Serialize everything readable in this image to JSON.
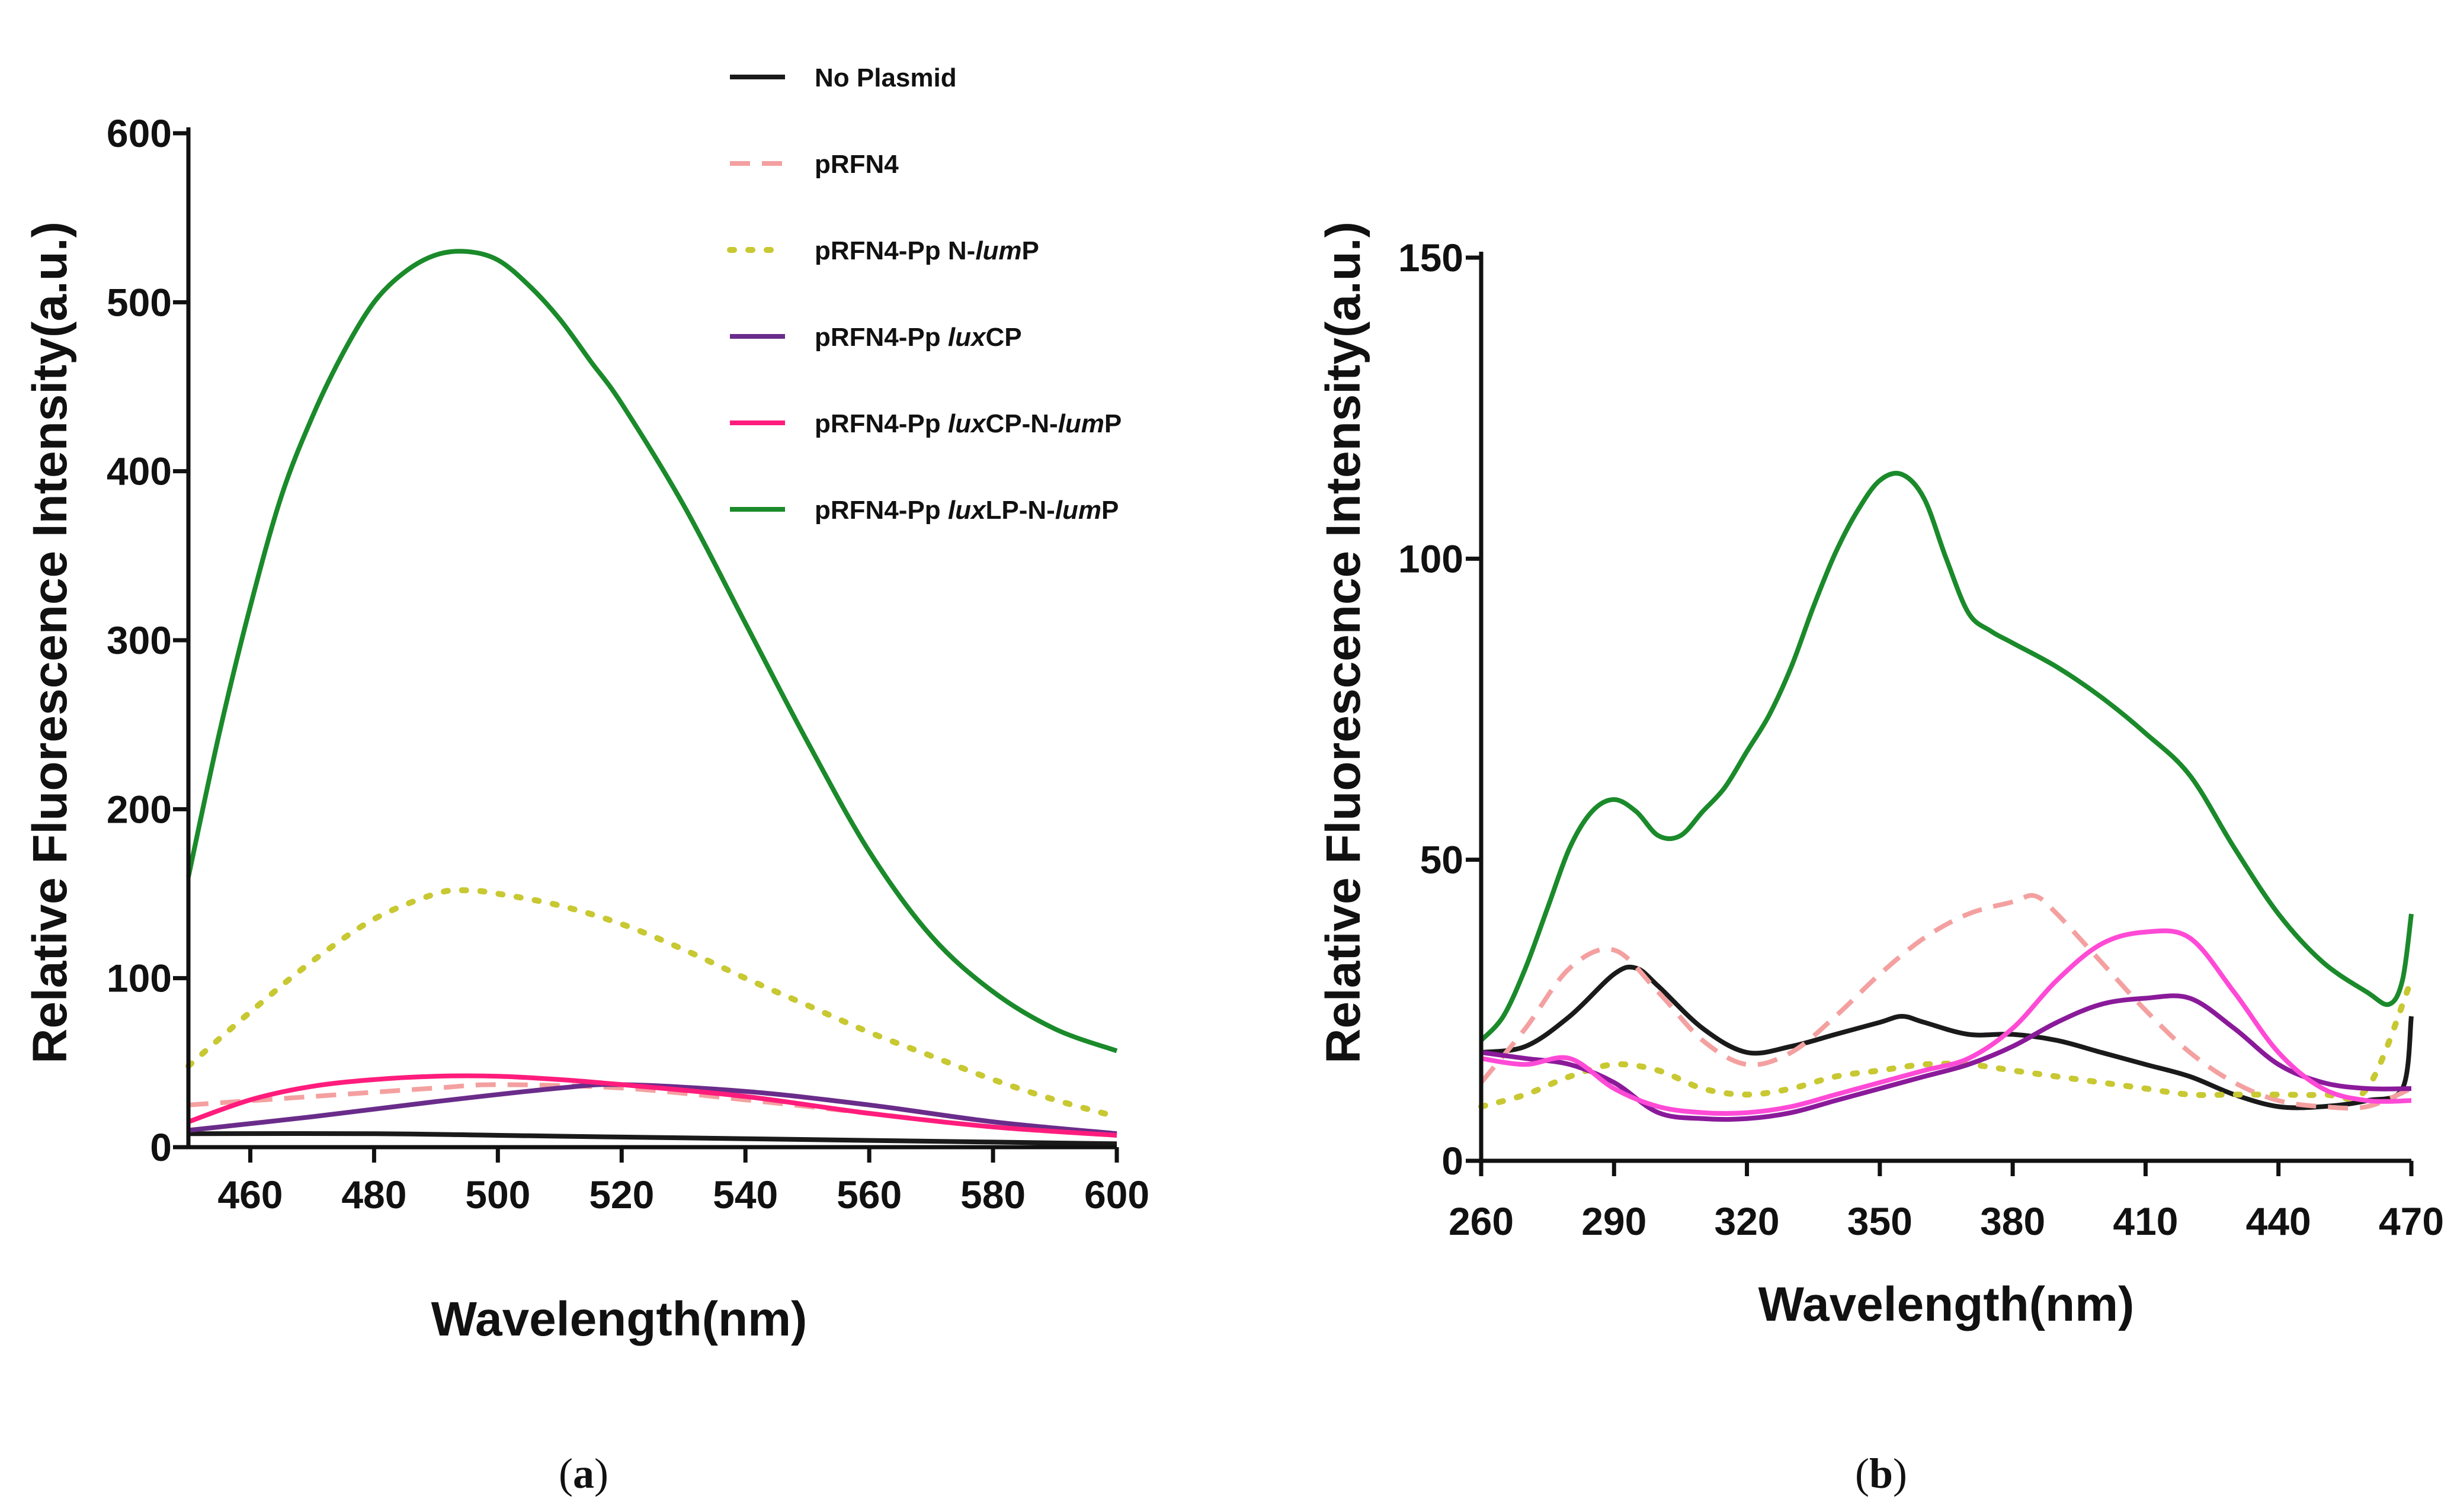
{
  "chart_data": [
    {
      "id": "a",
      "type": "line",
      "panel_label": "a",
      "xlabel": "Wavelength(nm)",
      "ylabel": "Relative Fluorescence Intensity(a.u.)",
      "xlim": [
        450,
        600
      ],
      "ylim": [
        0,
        600
      ],
      "xticks": [
        460,
        480,
        500,
        520,
        540,
        560,
        580,
        600
      ],
      "yticks": [
        0,
        100,
        200,
        300,
        400,
        500,
        600
      ],
      "legend_position": "top-right",
      "series": [
        {
          "name": "No Plasmid",
          "legend": [
            {
              "t": "No Plasmid",
              "i": false
            }
          ],
          "color": "#1a1a1a",
          "style": "solid",
          "x": [
            450,
            480,
            500,
            520,
            540,
            560,
            580,
            600
          ],
          "y": [
            8,
            8,
            7,
            6,
            5,
            4,
            3,
            2
          ]
        },
        {
          "name": "pRFN4",
          "legend": [
            {
              "t": "pRFN4",
              "i": false
            }
          ],
          "color": "#f4a0a0",
          "style": "dashed",
          "x": [
            450,
            470,
            490,
            500,
            520,
            540,
            560,
            580,
            600
          ],
          "y": [
            25,
            30,
            35,
            37,
            35,
            28,
            20,
            12,
            7
          ]
        },
        {
          "name": "pRFN4-Pp N-lumP",
          "legend": [
            {
              "t": "pRFN4-Pp N-",
              "i": false
            },
            {
              "t": "lum",
              "i": true
            },
            {
              "t": "P",
              "i": false
            }
          ],
          "color": "#c8c832",
          "style": "dotted",
          "x": [
            450,
            460,
            470,
            480,
            490,
            495,
            500,
            510,
            520,
            530,
            540,
            550,
            560,
            570,
            580,
            590,
            600
          ],
          "y": [
            48,
            80,
            110,
            135,
            150,
            152,
            150,
            143,
            132,
            117,
            100,
            84,
            68,
            54,
            40,
            28,
            18
          ]
        },
        {
          "name": "pRFN4-Pp luxCP",
          "legend": [
            {
              "t": "pRFN4-Pp ",
              "i": false
            },
            {
              "t": "lux",
              "i": true
            },
            {
              "t": "CP",
              "i": false
            }
          ],
          "color": "#6a2c8a",
          "style": "solid",
          "x": [
            450,
            470,
            490,
            510,
            520,
            540,
            560,
            580,
            600
          ],
          "y": [
            10,
            18,
            27,
            35,
            37,
            33,
            25,
            15,
            8
          ]
        },
        {
          "name": "pRFN4-Pp luxCP-N-lumP",
          "legend": [
            {
              "t": "pRFN4-Pp ",
              "i": false
            },
            {
              "t": "lux",
              "i": true
            },
            {
              "t": "CP-N-",
              "i": false
            },
            {
              "t": "lum",
              "i": true
            },
            {
              "t": "P",
              "i": false
            }
          ],
          "color": "#ff1c7c",
          "style": "solid",
          "x": [
            450,
            460,
            470,
            480,
            490,
            500,
            510,
            520,
            540,
            560,
            580,
            600
          ],
          "y": [
            15,
            28,
            36,
            40,
            42,
            42,
            40,
            37,
            30,
            20,
            12,
            7
          ]
        },
        {
          "name": "pRFN4-Pp luxLP-N-lumP",
          "legend": [
            {
              "t": "pRFN4-Pp ",
              "i": false
            },
            {
              "t": "lux",
              "i": true
            },
            {
              "t": "LP-N-",
              "i": false
            },
            {
              "t": "lum",
              "i": true
            },
            {
              "t": "P",
              "i": false
            }
          ],
          "color": "#1a8a2a",
          "style": "solid",
          "x": [
            450,
            455,
            460,
            465,
            470,
            475,
            480,
            485,
            490,
            495,
            500,
            505,
            510,
            515,
            520,
            530,
            540,
            550,
            560,
            570,
            580,
            590,
            600
          ],
          "y": [
            160,
            245,
            320,
            385,
            432,
            470,
            500,
            518,
            528,
            530,
            525,
            510,
            490,
            465,
            440,
            380,
            310,
            240,
            175,
            125,
            92,
            70,
            57
          ]
        }
      ]
    },
    {
      "id": "b",
      "type": "line",
      "panel_label": "b",
      "xlabel": "Wavelength(nm)",
      "ylabel": "Relative Fluorescence Intensity(a.u.)",
      "xlim": [
        260,
        470
      ],
      "ylim": [
        0,
        150
      ],
      "xticks": [
        260,
        290,
        320,
        350,
        380,
        410,
        440,
        470
      ],
      "yticks": [
        0,
        50,
        100,
        150
      ],
      "series": [
        {
          "name": "No Plasmid",
          "color": "#1a1a1a",
          "style": "solid",
          "x": [
            260,
            270,
            280,
            290,
            295,
            300,
            310,
            320,
            330,
            340,
            350,
            355,
            360,
            370,
            380,
            390,
            400,
            410,
            420,
            430,
            440,
            450,
            460,
            468,
            470
          ],
          "y": [
            18,
            19,
            24,
            31,
            32,
            29,
            22,
            18,
            19,
            21,
            23,
            24,
            23,
            21,
            21,
            20,
            18,
            16,
            14,
            11,
            9,
            9,
            10,
            12,
            24
          ]
        },
        {
          "name": "pRFN4",
          "color": "#f4a0a0",
          "style": "dashed",
          "x": [
            260,
            270,
            280,
            290,
            300,
            310,
            320,
            330,
            340,
            350,
            360,
            370,
            380,
            385,
            390,
            400,
            410,
            420,
            430,
            440,
            450,
            460,
            470
          ],
          "y": [
            13,
            22,
            32,
            35,
            28,
            20,
            16,
            18,
            24,
            31,
            37,
            41,
            43,
            44,
            41,
            33,
            25,
            18,
            13,
            10,
            9,
            9,
            12
          ]
        },
        {
          "name": "pRFN4-Pp N-lumP",
          "color": "#c8c832",
          "style": "dotted",
          "x": [
            260,
            270,
            280,
            290,
            300,
            310,
            320,
            330,
            340,
            350,
            360,
            370,
            380,
            390,
            400,
            410,
            420,
            430,
            440,
            450,
            460,
            470
          ],
          "y": [
            9,
            11,
            14,
            16,
            15,
            12,
            11,
            12,
            14,
            15,
            16,
            16,
            15,
            14,
            13,
            12,
            11,
            11,
            11,
            11,
            12,
            30
          ]
        },
        {
          "name": "pRFN4-Pp luxCP",
          "color": "#8a1a9a",
          "style": "solid",
          "x": [
            260,
            270,
            280,
            290,
            300,
            310,
            320,
            330,
            340,
            350,
            360,
            370,
            380,
            390,
            400,
            410,
            420,
            430,
            440,
            450,
            460,
            470
          ],
          "y": [
            18,
            17,
            16,
            13,
            8,
            7,
            7,
            8,
            10,
            12,
            14,
            16,
            19,
            23,
            26,
            27,
            27,
            22,
            16,
            13,
            12,
            12
          ]
        },
        {
          "name": "pRFN4-Pp luxCP-N-lumP",
          "color": "#ff4ad6",
          "style": "solid",
          "x": [
            260,
            270,
            280,
            290,
            300,
            310,
            320,
            330,
            340,
            350,
            360,
            370,
            380,
            390,
            400,
            410,
            420,
            430,
            440,
            450,
            460,
            470
          ],
          "y": [
            17,
            16,
            17,
            12,
            9,
            8,
            8,
            9,
            11,
            13,
            15,
            17,
            22,
            30,
            36,
            38,
            37,
            28,
            18,
            12,
            10,
            10
          ]
        },
        {
          "name": "pRFN4-Pp luxLP-N-lumP",
          "color": "#1a8a2a",
          "style": "solid",
          "x": [
            260,
            265,
            270,
            275,
            280,
            285,
            290,
            295,
            300,
            305,
            310,
            315,
            320,
            325,
            330,
            335,
            340,
            345,
            350,
            355,
            360,
            365,
            370,
            375,
            380,
            390,
            400,
            410,
            420,
            430,
            440,
            450,
            460,
            465,
            468,
            470
          ],
          "y": [
            20,
            24,
            32,
            42,
            52,
            58,
            60,
            58,
            54,
            54,
            58,
            62,
            68,
            74,
            82,
            92,
            101,
            108,
            113,
            114,
            110,
            100,
            91,
            88,
            86,
            82,
            77,
            71,
            64,
            52,
            41,
            33,
            28,
            26,
            30,
            41
          ]
        }
      ]
    }
  ]
}
